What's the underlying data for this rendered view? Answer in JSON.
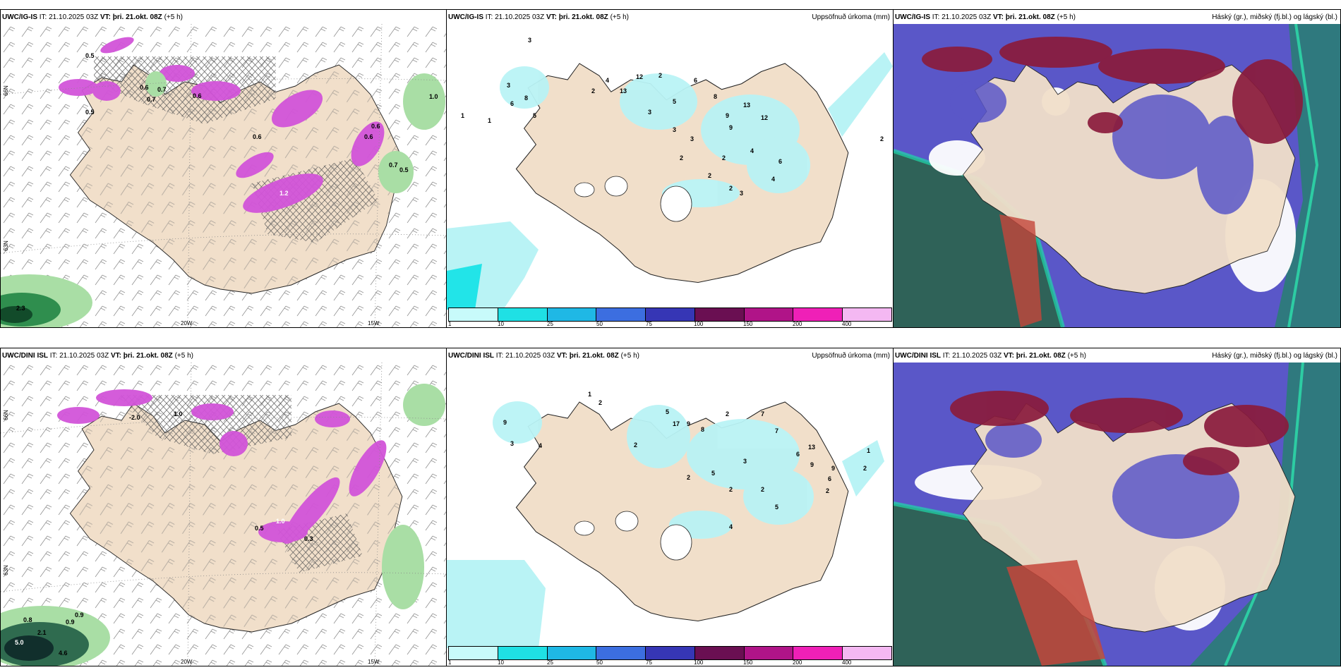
{
  "colors": {
    "land": "#f1dfca",
    "ocean": "#ffffff",
    "precip_magenta": "#d254d9",
    "precip_green": "#a9dea5",
    "cloud_high": "#8a1b3c",
    "cloud_mid": "#4a49b7",
    "cloud_low": "#2d5f56"
  },
  "rows": [
    {
      "model": "UWC/IG-IS",
      "it_label": "IT: 21.10.2025 03Z",
      "vt_label": "VT: þri. 21.okt. 08Z",
      "lead": "(+5 h)",
      "left_values": [
        "0.5",
        "0.6",
        "0.7",
        "0.6",
        "0.7",
        "0.6",
        "1.2",
        "0.6",
        "0.5",
        "0.7",
        "0.6",
        "1.0",
        "2.3",
        "0.5"
      ],
      "mid_values": [
        "3",
        "3",
        "6",
        "8",
        "5",
        "2",
        "4",
        "13",
        "12",
        "2",
        "6",
        "8",
        "3",
        "5",
        "9",
        "13",
        "3",
        "9",
        "12",
        "3",
        "2",
        "4",
        "2",
        "2",
        "6",
        "4",
        "3",
        "2",
        "1",
        "1",
        "2"
      ],
      "lon_labels": [
        "20W",
        "15W"
      ],
      "lat_labels": [
        "66N",
        "63N"
      ]
    },
    {
      "model": "UWC/DINI ISL",
      "it_label": "IT: 21.10.2025 03Z",
      "vt_label": "VT: þri. 21.okt. 08Z",
      "lead": "(+5 h)",
      "left_values": [
        "-2.0",
        "1.0",
        "1.0",
        "0.5",
        "0.3",
        "0.8",
        "0.9",
        "0.9",
        "2.1",
        "5.0",
        "4.6"
      ],
      "mid_values": [
        "1",
        "2",
        "9",
        "3",
        "4",
        "2",
        "5",
        "17",
        "9",
        "8",
        "2",
        "7",
        "7",
        "13",
        "6",
        "9",
        "3",
        "2",
        "5",
        "2",
        "2",
        "4",
        "5",
        "9",
        "6",
        "2",
        "1",
        "2"
      ],
      "lon_labels": [
        "20W",
        "15W"
      ],
      "lat_labels": [
        "66N",
        "63N"
      ]
    }
  ],
  "mid_title": "Uppsöfnuð úrkoma (mm)",
  "right_title": "Háský (gr.), miðský (fj.bl.) og lágský (bl.)",
  "colorbar": {
    "ticks": [
      "1",
      "10",
      "25",
      "50",
      "75",
      "100",
      "150",
      "200",
      "400"
    ],
    "colors": [
      "#c8fafa",
      "#1fe0e4",
      "#1fb8e5",
      "#3c6ee0",
      "#3636b5",
      "#6a0f52",
      "#b01488",
      "#ef20b7",
      "#f4b8f2"
    ]
  }
}
